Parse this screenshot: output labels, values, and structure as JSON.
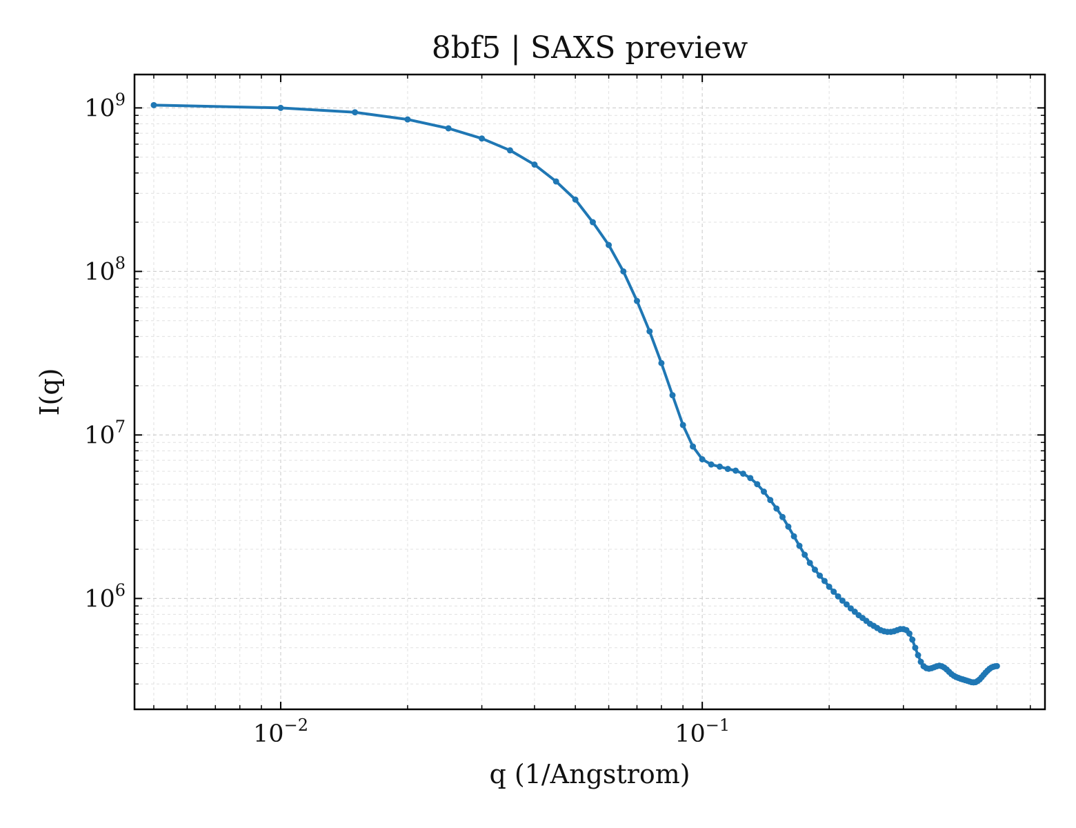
{
  "chart_data": {
    "type": "line",
    "title": "8bf5 | SAXS preview",
    "xlabel": "q (1/Angstrom)",
    "ylabel": "I(q)",
    "xscale": "log",
    "yscale": "log",
    "xlim": [
      0.0045,
      0.65
    ],
    "ylim": [
      210000,
      1600000000
    ],
    "grid": true,
    "legend": "none",
    "x_ticks": [
      {
        "value": 0.01,
        "base": "10",
        "exp": "−2"
      },
      {
        "value": 0.1,
        "base": "10",
        "exp": "−1"
      }
    ],
    "y_ticks": [
      {
        "value": 1000000,
        "base": "10",
        "exp": "6"
      },
      {
        "value": 10000000,
        "base": "10",
        "exp": "7"
      },
      {
        "value": 100000000,
        "base": "10",
        "exp": "8"
      },
      {
        "value": 1000000000,
        "base": "10",
        "exp": "9"
      }
    ],
    "series": [
      {
        "color": "#1f77b4",
        "x": [
          0.005,
          0.01,
          0.015,
          0.02,
          0.025,
          0.03,
          0.035,
          0.04,
          0.045,
          0.05,
          0.055,
          0.06,
          0.065,
          0.07,
          0.075,
          0.08,
          0.085,
          0.09,
          0.095,
          0.1,
          0.105,
          0.11,
          0.115,
          0.12,
          0.125,
          0.13,
          0.135,
          0.14,
          0.145,
          0.15,
          0.155,
          0.16,
          0.165,
          0.17,
          0.175,
          0.18,
          0.185,
          0.19,
          0.195,
          0.2,
          0.205,
          0.21,
          0.215,
          0.22,
          0.225,
          0.23,
          0.235,
          0.24,
          0.245,
          0.25,
          0.255,
          0.26,
          0.265,
          0.27,
          0.275,
          0.28,
          0.285,
          0.29,
          0.295,
          0.3,
          0.305,
          0.31,
          0.315,
          0.32,
          0.325,
          0.33,
          0.335,
          0.34,
          0.345,
          0.35,
          0.355,
          0.36,
          0.365,
          0.37,
          0.375,
          0.38,
          0.385,
          0.39,
          0.395,
          0.4,
          0.405,
          0.41,
          0.415,
          0.42,
          0.425,
          0.43,
          0.435,
          0.44,
          0.445,
          0.45,
          0.455,
          0.46,
          0.465,
          0.47,
          0.475,
          0.48,
          0.485,
          0.49,
          0.495,
          0.5
        ],
        "y": [
          1040000000,
          1000000000,
          940000000,
          850000000,
          750000000,
          650000000,
          550000000,
          450000000,
          355000000,
          275000000,
          200000000,
          145000000,
          100000000,
          66000000,
          43000000,
          27500000,
          17500000,
          11500000,
          8500000,
          7100000,
          6600000,
          6400000,
          6200000,
          6050000,
          5800000,
          5450000,
          5000000,
          4500000,
          4000000,
          3550000,
          3150000,
          2750000,
          2400000,
          2100000,
          1850000,
          1650000,
          1500000,
          1380000,
          1280000,
          1180000,
          1100000,
          1030000,
          970000,
          920000,
          870000,
          830000,
          790000,
          760000,
          730000,
          700000,
          680000,
          660000,
          640000,
          630000,
          625000,
          625000,
          630000,
          640000,
          650000,
          650000,
          640000,
          610000,
          560000,
          500000,
          450000,
          410000,
          385000,
          375000,
          372000,
          375000,
          380000,
          385000,
          388000,
          385000,
          378000,
          368000,
          356000,
          345000,
          337000,
          331000,
          327000,
          323000,
          320000,
          317000,
          314000,
          311000,
          308000,
          307000,
          308000,
          313000,
          320000,
          330000,
          341000,
          352000,
          362000,
          371000,
          378000,
          382000,
          385000,
          386000
        ]
      }
    ]
  }
}
